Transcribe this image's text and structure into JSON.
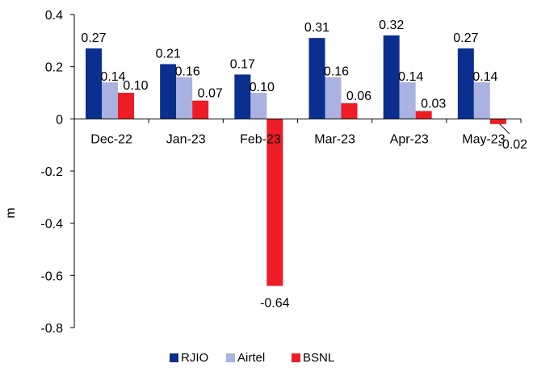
{
  "chart_data": {
    "type": "bar",
    "categories": [
      "Dec-22",
      "Jan-23",
      "Feb-23",
      "Mar-23",
      "Apr-23",
      "May-23"
    ],
    "series": [
      {
        "name": "RJIO",
        "color": "#0a2f8f",
        "values": [
          0.27,
          0.21,
          0.17,
          0.31,
          0.32,
          0.27
        ],
        "labels": [
          "0.27",
          "0.21",
          "0.17",
          "0.31",
          "0.32",
          "0.27"
        ]
      },
      {
        "name": "Airtel",
        "color": "#a9b2e0",
        "values": [
          0.14,
          0.16,
          0.1,
          0.16,
          0.14,
          0.14
        ],
        "labels": [
          "0.14",
          "0.16",
          "0.10",
          "0.16",
          "0.14",
          "0.14"
        ]
      },
      {
        "name": "BSNL",
        "color": "#ee1c25",
        "values": [
          0.1,
          0.07,
          -0.64,
          0.06,
          0.03,
          -0.02
        ],
        "labels": [
          "0.10",
          "0.07",
          "-0.64",
          "0.06",
          "0.03",
          "-0.02"
        ]
      }
    ],
    "ylabel": "m",
    "ylim": [
      -0.8,
      0.4
    ],
    "yticks": [
      0.4,
      0.2,
      0,
      -0.2,
      -0.4,
      -0.6,
      -0.8
    ],
    "ytick_labels": [
      "0.4",
      "0.2",
      "0",
      "-0.2",
      "-0.4",
      "-0.6",
      "-0.8"
    ],
    "grid": false,
    "legend": "bottom"
  }
}
